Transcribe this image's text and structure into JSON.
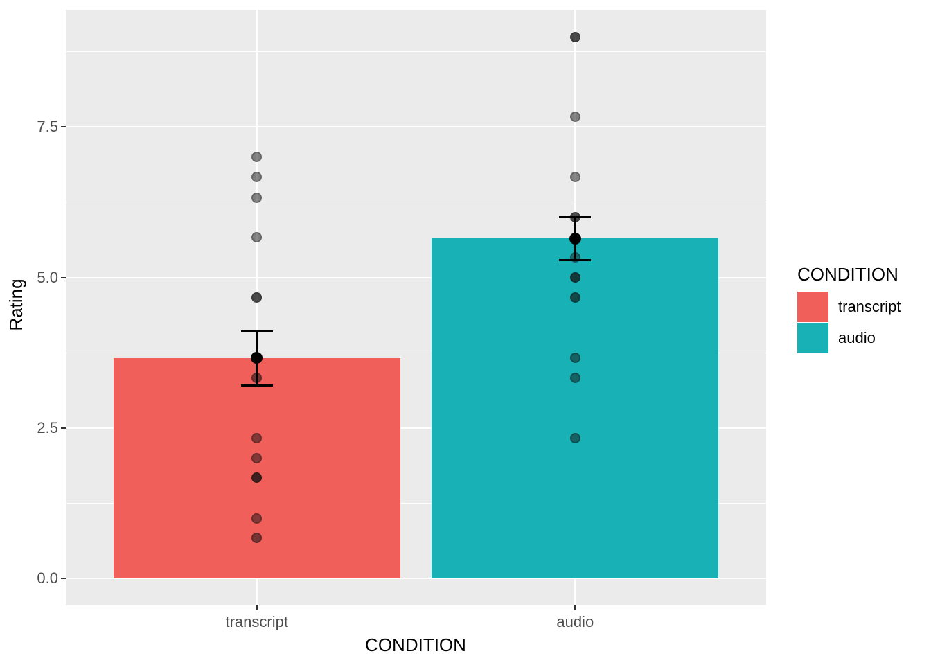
{
  "figure": {
    "ylabel": "Rating",
    "xlabel": "CONDITION"
  },
  "legend": {
    "title": "CONDITION",
    "entries": [
      {
        "label": "transcript",
        "color": "#F15F5B"
      },
      {
        "label": "audio",
        "color": "#18B1B5"
      }
    ]
  },
  "chart_data": {
    "type": "bar",
    "title": "",
    "xlabel": "CONDITION",
    "ylabel": "Rating",
    "categories": [
      "transcript",
      "audio"
    ],
    "series": [
      {
        "name": "transcript",
        "mean": 3.66,
        "error_low": 3.2,
        "error_high": 4.1,
        "fill": "#F15F5B",
        "points": [
          {
            "value": 7.0,
            "alpha": 0.5
          },
          {
            "value": 6.67,
            "alpha": 0.5
          },
          {
            "value": 6.33,
            "alpha": 0.5
          },
          {
            "value": 5.67,
            "alpha": 0.5
          },
          {
            "value": 4.67,
            "alpha": 0.75
          },
          {
            "value": 3.33,
            "alpha": 0.55
          },
          {
            "value": 2.33,
            "alpha": 0.5
          },
          {
            "value": 2.0,
            "alpha": 0.5
          },
          {
            "value": 1.67,
            "alpha": 0.8
          },
          {
            "value": 1.0,
            "alpha": 0.5
          },
          {
            "value": 0.67,
            "alpha": 0.55
          }
        ]
      },
      {
        "name": "audio",
        "mean": 5.65,
        "error_low": 5.29,
        "error_high": 6.0,
        "fill": "#18B1B5",
        "points": [
          {
            "value": 9.0,
            "alpha": 0.75
          },
          {
            "value": 7.67,
            "alpha": 0.5
          },
          {
            "value": 6.67,
            "alpha": 0.5
          },
          {
            "value": 6.0,
            "alpha": 0.75
          },
          {
            "value": 5.33,
            "alpha": 0.45
          },
          {
            "value": 5.0,
            "alpha": 0.75
          },
          {
            "value": 4.67,
            "alpha": 0.65
          },
          {
            "value": 3.67,
            "alpha": 0.5
          },
          {
            "value": 3.33,
            "alpha": 0.5
          },
          {
            "value": 2.33,
            "alpha": 0.5
          }
        ]
      }
    ],
    "y_ticks": [
      {
        "value": 0.0,
        "label": "0.0"
      },
      {
        "value": 2.5,
        "label": "2.5"
      },
      {
        "value": 5.0,
        "label": "5.0"
      },
      {
        "value": 7.5,
        "label": "7.5"
      }
    ],
    "y_minor_values": [
      1.25,
      3.75,
      6.25,
      8.75
    ],
    "ylim": [
      -0.45,
      9.45
    ],
    "bar_width_units": 0.9,
    "errorbar_width_units": 0.1,
    "grid": true,
    "legend_position": "right",
    "legend_title": "CONDITION",
    "colors": {
      "panel_bg": "#EBEBEB",
      "grid_major": "#FFFFFF",
      "grid_minor": "#FFFFFF",
      "axis_text": "#4D4D4D",
      "axis_title": "#000000",
      "tick_mark": "#333333",
      "point": "#111111",
      "summary": "#000000"
    }
  }
}
